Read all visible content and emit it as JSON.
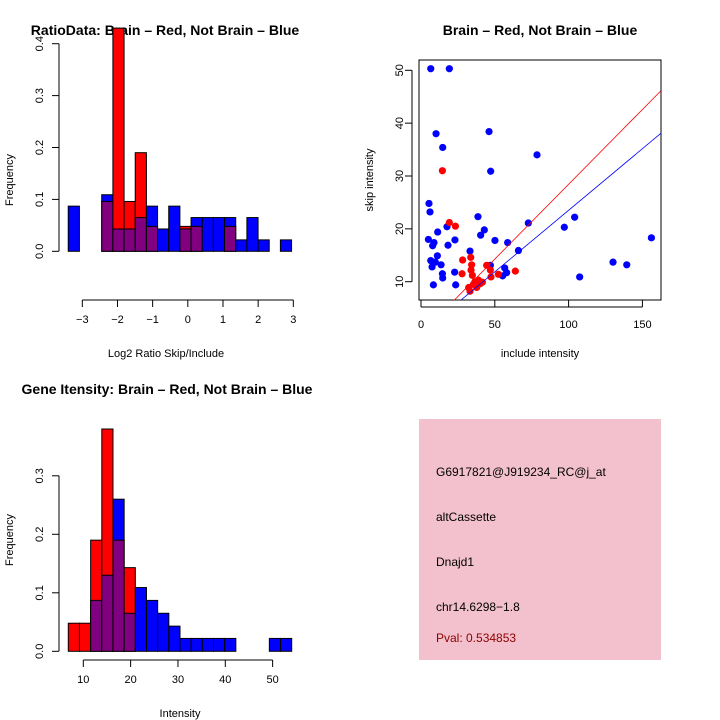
{
  "colors": {
    "brain": "#ff0000",
    "not_brain": "#0000ff",
    "overlap": "#800080",
    "panel_bg": "#f3c1cd",
    "pval": "#8b0000"
  },
  "chart_data": [
    {
      "type": "bar",
      "title": "RatioData: Brain – Red, Not Brain – Blue",
      "xlabel": "Log2 Ratio Skip/Include",
      "ylabel": "Frequency",
      "bin_start": -3.4,
      "bin_width": 0.3175,
      "xticks": [
        "−3",
        "−2",
        "−1",
        "0",
        "1",
        "2",
        "3"
      ],
      "xtick_values": [
        -3,
        -2,
        -1,
        0,
        1,
        2,
        3
      ],
      "yticks": [
        "0.0",
        "0.1",
        "0.2",
        "0.3",
        "0.4"
      ],
      "ytick_values": [
        0,
        0.1,
        0.2,
        0.3,
        0.4
      ],
      "series": [
        {
          "name": "Not Brain",
          "color": "blue",
          "values": [
            0.087,
            0,
            0,
            0.109,
            0.043,
            0.043,
            0.065,
            0.087,
            0.043,
            0.087,
            0.043,
            0.065,
            0.065,
            0.065,
            0.065,
            0.022,
            0.065,
            0.022,
            0,
            0.022
          ]
        },
        {
          "name": "Brain",
          "color": "red",
          "values": [
            0,
            0,
            0,
            0.096,
            0.43,
            0.096,
            0.19,
            0.048,
            0,
            0,
            0.048,
            0.048,
            0,
            0,
            0.048,
            0,
            0,
            0,
            0,
            0
          ]
        }
      ]
    },
    {
      "type": "scatter",
      "title": "Brain – Red, Not Brain – Blue",
      "xlabel": "include intensity",
      "ylabel": "skip intensity",
      "xlim": [
        -1.1,
        162.4
      ],
      "ylim": [
        6.5,
        51.9
      ],
      "xticks": [
        "0",
        "50",
        "100",
        "150"
      ],
      "xtick_values": [
        0,
        50,
        100,
        150
      ],
      "yticks": [
        "10",
        "20",
        "30",
        "40",
        "50"
      ],
      "ytick_values": [
        10,
        20,
        30,
        40,
        50
      ],
      "series": [
        {
          "name": "Not Brain",
          "color": "blue",
          "points": [
            [
              6.6,
              50.3
            ],
            [
              19.2,
              50.3
            ],
            [
              10.2,
              38
            ],
            [
              14.7,
              35.4
            ],
            [
              46.1,
              38.4
            ],
            [
              47.2,
              30.9
            ],
            [
              78.6,
              34
            ],
            [
              5.4,
              24.8
            ],
            [
              6.1,
              23.2
            ],
            [
              38.6,
              22.3
            ],
            [
              72.7,
              21.1
            ],
            [
              97.1,
              20.3
            ],
            [
              104.1,
              22.2
            ],
            [
              17.6,
              20.4
            ],
            [
              11.3,
              19.4
            ],
            [
              42.9,
              19.8
            ],
            [
              40.4,
              18.8
            ],
            [
              5,
              18
            ],
            [
              8.8,
              17.4
            ],
            [
              23,
              17.9
            ],
            [
              50.1,
              17.8
            ],
            [
              58.7,
              17.4
            ],
            [
              18.3,
              16.9
            ],
            [
              7.9,
              16.8
            ],
            [
              33.2,
              15.8
            ],
            [
              66,
              15.9
            ],
            [
              11.1,
              14.9
            ],
            [
              6.6,
              14
            ],
            [
              9.7,
              13.7
            ],
            [
              13.6,
              13.2
            ],
            [
              7.5,
              12.8
            ],
            [
              47,
              13.1
            ],
            [
              56.7,
              12.6
            ],
            [
              58,
              11.7
            ],
            [
              14.5,
              11.5
            ],
            [
              14.7,
              10.7
            ],
            [
              22.8,
              11.8
            ],
            [
              55.3,
              11.1
            ],
            [
              8.4,
              9.4
            ],
            [
              23.5,
              9.4
            ],
            [
              107.5,
              10.9
            ],
            [
              130.1,
              13.7
            ],
            [
              139.4,
              13.2
            ],
            [
              156.1,
              18.3
            ]
          ]
        },
        {
          "name": "Brain",
          "color": "red",
          "points": [
            [
              14.5,
              31
            ],
            [
              19.2,
              21.2
            ],
            [
              23.3,
              20.5
            ],
            [
              28.2,
              14.1
            ],
            [
              33.7,
              14.6
            ],
            [
              34.3,
              13.2
            ],
            [
              33.9,
              12.2
            ],
            [
              27.8,
              11.5
            ],
            [
              34.8,
              11.2
            ],
            [
              44.5,
              13.1
            ],
            [
              47,
              12.2
            ],
            [
              47.4,
              10.9
            ],
            [
              52.4,
              11.4
            ],
            [
              63.9,
              12
            ],
            [
              36.6,
              10
            ],
            [
              38.9,
              10.3
            ],
            [
              41.6,
              9.9
            ],
            [
              35.5,
              9.5
            ],
            [
              32.3,
              8.9
            ],
            [
              33.2,
              8.2
            ],
            [
              37.7,
              8.9
            ],
            [
              40,
              9.6
            ]
          ]
        }
      ],
      "fit_lines": [
        {
          "name": "Brain",
          "color": "red",
          "slope": 0.283,
          "intercept": 0.13
        },
        {
          "name": "Not Brain",
          "color": "blue",
          "slope": 0.233,
          "intercept": 0.21
        }
      ]
    },
    {
      "type": "bar",
      "title": "Gene Itensity: Brain – Red, Not Brain – Blue",
      "xlabel": "Intensity",
      "ylabel": "Frequency",
      "bin_start": 6.83,
      "bin_width": 2.36,
      "xticks": [
        "10",
        "20",
        "30",
        "40",
        "50"
      ],
      "xtick_values": [
        10,
        20,
        30,
        40,
        50
      ],
      "yticks": [
        "0.0",
        "0.1",
        "0.2",
        "0.3"
      ],
      "ytick_values": [
        0,
        0.1,
        0.2,
        0.3
      ],
      "series": [
        {
          "name": "Not Brain",
          "color": "blue",
          "values": [
            0,
            0,
            0.087,
            0.13,
            0.26,
            0.065,
            0.109,
            0.087,
            0.065,
            0.043,
            0.022,
            0.022,
            0.022,
            0.022,
            0.022,
            0,
            0,
            0,
            0.022,
            0.022
          ]
        },
        {
          "name": "Brain",
          "color": "red",
          "values": [
            0.048,
            0.048,
            0.19,
            0.38,
            0.19,
            0.143,
            0,
            0,
            0,
            0,
            0,
            0,
            0,
            0,
            0,
            0,
            0,
            0,
            0,
            0
          ]
        }
      ]
    }
  ],
  "info_panel": {
    "probe_id": "G6917821@J919234_RC@j_at",
    "event_type": "altCassette",
    "gene": "Dnajd1",
    "location": "chr14.6298−1.8",
    "pval": "Pval: 0.534853"
  }
}
